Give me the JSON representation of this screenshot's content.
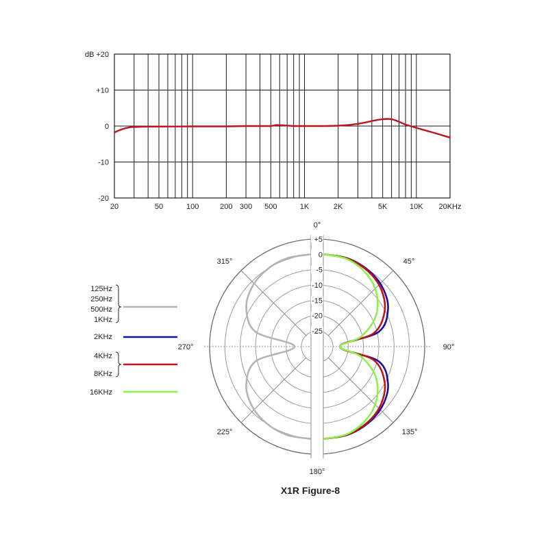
{
  "chart_data": [
    {
      "type": "line",
      "x_scale": "log",
      "xlim": [
        20,
        20000
      ],
      "ylim": [
        -20,
        20
      ],
      "grid": true,
      "ylabel_prefix": "dB",
      "x_ticks": [
        {
          "value": 20,
          "label": "20"
        },
        {
          "value": 50,
          "label": "50"
        },
        {
          "value": 100,
          "label": "100"
        },
        {
          "value": 200,
          "label": "200"
        },
        {
          "value": 300,
          "label": "300"
        },
        {
          "value": 500,
          "label": "500"
        },
        {
          "value": 1000,
          "label": "1K"
        },
        {
          "value": 2000,
          "label": "2K"
        },
        {
          "value": 5000,
          "label": "5K"
        },
        {
          "value": 10000,
          "label": "10K"
        },
        {
          "value": 20000,
          "label": "20KHz"
        }
      ],
      "y_ticks": [
        {
          "value": 20,
          "label": "+20"
        },
        {
          "value": 10,
          "label": "+10"
        },
        {
          "value": 0,
          "label": "0"
        },
        {
          "value": -10,
          "label": "-10"
        },
        {
          "value": -20,
          "label": "-20"
        }
      ],
      "series": [
        {
          "color": "#c0141a",
          "x": [
            20,
            22,
            25,
            28,
            35,
            50,
            100,
            200,
            300,
            400,
            500,
            560,
            650,
            800,
            1000,
            1500,
            2000,
            2500,
            3000,
            3500,
            4000,
            4500,
            5000,
            5500,
            6000,
            6500,
            7000,
            8000,
            10000,
            12000,
            14000,
            16000,
            18000,
            20000
          ],
          "y": [
            -1.8,
            -1.2,
            -0.6,
            -0.3,
            -0.2,
            -0.15,
            -0.1,
            -0.1,
            0.0,
            0.0,
            0.0,
            0.3,
            0.2,
            0.0,
            0.0,
            0.0,
            0.1,
            0.3,
            0.6,
            1.0,
            1.4,
            1.7,
            1.9,
            2.0,
            1.9,
            1.6,
            1.2,
            0.4,
            -0.5,
            -1.2,
            -1.8,
            -2.3,
            -2.8,
            -3.2
          ]
        }
      ]
    },
    {
      "type": "polar",
      "rlim": [
        -25,
        5
      ],
      "r_ticks": [
        {
          "value": 5,
          "label": "+5"
        },
        {
          "value": 0,
          "label": "0"
        },
        {
          "value": -5,
          "label": "-5"
        },
        {
          "value": -10,
          "label": "-10"
        },
        {
          "value": -15,
          "label": "-15"
        },
        {
          "value": -20,
          "label": "-20"
        },
        {
          "value": -25,
          "label": "-25"
        }
      ],
      "angle_labels": [
        {
          "angle": 0,
          "label": "0°"
        },
        {
          "angle": 45,
          "label": "45°"
        },
        {
          "angle": 90,
          "label": "90°"
        },
        {
          "angle": 135,
          "label": "135°"
        },
        {
          "angle": 180,
          "label": "180°"
        },
        {
          "angle": 225,
          "label": "225°"
        },
        {
          "angle": 270,
          "label": "270°"
        },
        {
          "angle": 315,
          "label": "315°"
        }
      ],
      "legend_position": "left",
      "series": [
        {
          "name_lines": [
            "125Hz",
            "250Hz",
            "500Hz",
            "1KHz"
          ],
          "color": "#b4b4b4",
          "side": "left",
          "pattern": "figure-8 cosine",
          "angles_deg": [
            0,
            15,
            30,
            45,
            60,
            75,
            90,
            105,
            120,
            135,
            150,
            165,
            180
          ],
          "level_db": [
            0,
            -0.3,
            -1.3,
            -3.0,
            -6.0,
            -11.7,
            -25,
            -11.7,
            -6.0,
            -3.0,
            -1.3,
            -0.3,
            0
          ]
        },
        {
          "name_lines": [
            "2KHz"
          ],
          "color": "#1212a8",
          "side": "right",
          "pattern": "figure-8 cosine",
          "angles_deg": [
            0,
            15,
            30,
            45,
            60,
            75,
            90,
            105,
            120,
            135,
            150,
            165,
            180
          ],
          "level_db": [
            0,
            -0.3,
            -1.3,
            -3.0,
            -6.0,
            -11.7,
            -25,
            -11.7,
            -6.0,
            -3.0,
            -1.3,
            -0.3,
            0
          ]
        },
        {
          "name_lines": [
            "4KHz",
            "8KHz"
          ],
          "color": "#c0141a",
          "side": "right",
          "pattern": "narrowed figure-8",
          "angles_deg": [
            0,
            15,
            30,
            45,
            60,
            75,
            90,
            105,
            120,
            135,
            150,
            165,
            180
          ],
          "level_db": [
            0,
            -0.4,
            -1.6,
            -3.7,
            -7.3,
            -13.4,
            -25,
            -13.4,
            -7.3,
            -3.7,
            -1.6,
            -0.4,
            0
          ]
        },
        {
          "name_lines": [
            "16KHz"
          ],
          "color": "#8ef04a",
          "side": "right",
          "pattern": "narrowed figure-8",
          "angles_deg": [
            0,
            15,
            30,
            45,
            60,
            75,
            90,
            105,
            120,
            135,
            150,
            165,
            180
          ],
          "level_db": [
            0,
            -0.6,
            -2.6,
            -5.8,
            -10.7,
            -17.7,
            -25,
            -17.7,
            -10.7,
            -5.8,
            -2.6,
            -0.6,
            0
          ]
        }
      ],
      "title": "X1R Figure-8"
    }
  ]
}
